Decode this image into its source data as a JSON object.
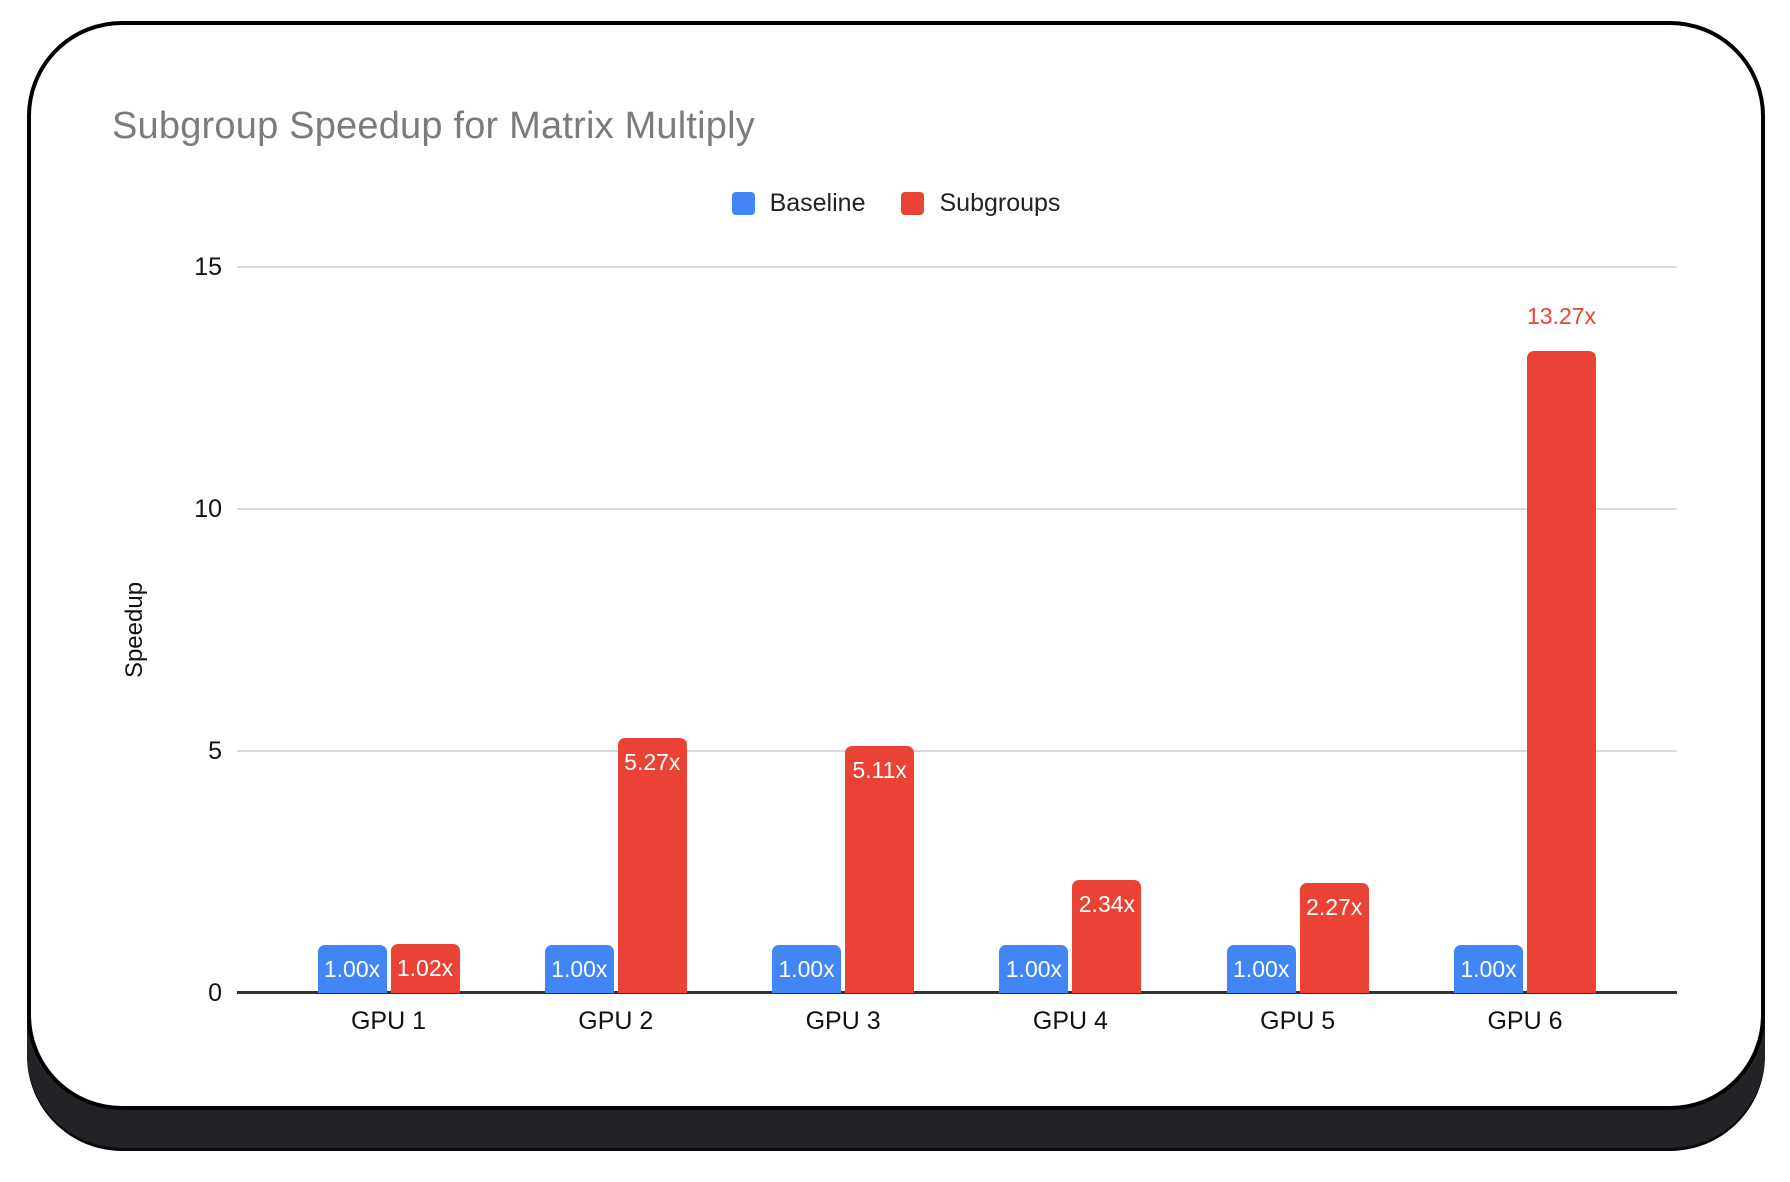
{
  "card": {
    "title": "Subgroup Speedup for Matrix Multiply"
  },
  "legend": {
    "items": [
      {
        "label": "Baseline",
        "color": "#4285F4"
      },
      {
        "label": "Subgroups",
        "color": "#EA4335"
      }
    ]
  },
  "chart_data": {
    "type": "bar",
    "title": "Subgroup Speedup for Matrix Multiply",
    "xlabel": "",
    "ylabel": "Speedup",
    "ylim": [
      0,
      15
    ],
    "yticks": [
      0,
      5,
      10,
      15
    ],
    "grid": true,
    "legend_position": "top-center",
    "categories": [
      "GPU 1",
      "GPU 2",
      "GPU 3",
      "GPU 4",
      "GPU 5",
      "GPU 6"
    ],
    "series": [
      {
        "name": "Baseline",
        "color": "#4285F4",
        "values": [
          1.0,
          1.0,
          1.0,
          1.0,
          1.0,
          1.0
        ],
        "data_labels": [
          "1.00x",
          "1.00x",
          "1.00x",
          "1.00x",
          "1.00x",
          "1.00x"
        ],
        "label_placement": [
          "inside",
          "inside",
          "inside",
          "inside",
          "inside",
          "inside"
        ]
      },
      {
        "name": "Subgroups",
        "color": "#EA4335",
        "values": [
          1.02,
          5.27,
          5.11,
          2.34,
          2.27,
          13.27
        ],
        "data_labels": [
          "1.02x",
          "5.27x",
          "5.11x",
          "2.34x",
          "2.27x",
          "13.27x"
        ],
        "label_placement": [
          "inside",
          "inside",
          "inside",
          "inside",
          "inside",
          "above"
        ]
      }
    ]
  },
  "colors": {
    "baseline_blue": "#4285F4",
    "subgroups_red": "#EA4335",
    "title_gray": "#7b7b7b",
    "gridline": "#d9d9d9",
    "axis_line": "#333333",
    "tick_text": "#111111",
    "bar_label_text": "#ffffff",
    "card_border": "#000000",
    "card_bottom_band": "#232327",
    "background": "#ffffff"
  }
}
